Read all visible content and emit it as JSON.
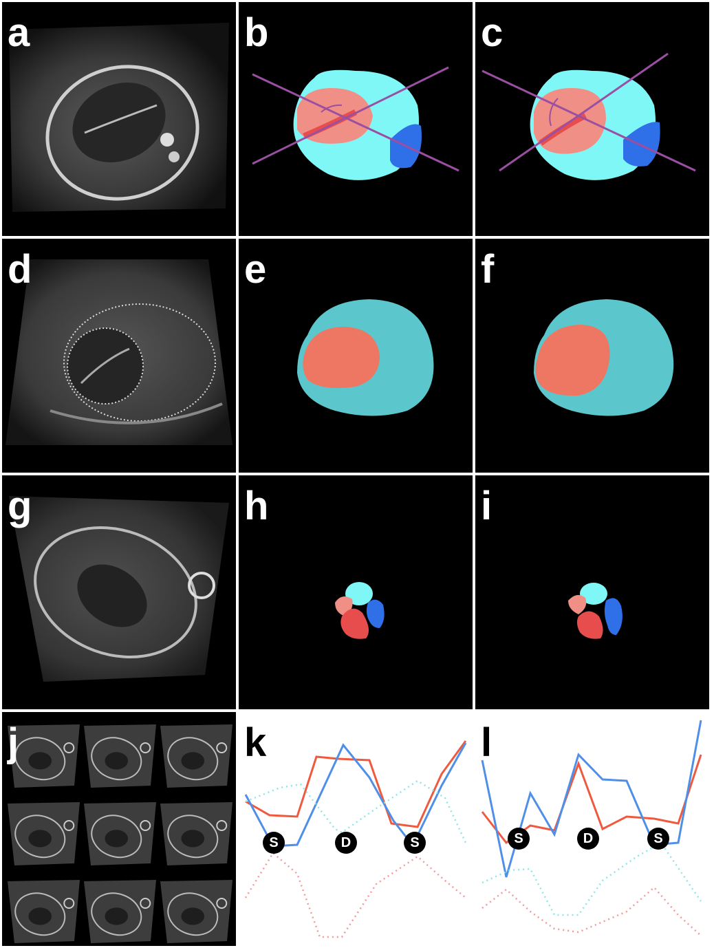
{
  "panel_labels": {
    "a": "a",
    "b": "b",
    "c": "c",
    "d": "d",
    "e": "e",
    "f": "f",
    "g": "g",
    "h": "h",
    "i": "i",
    "j": "j",
    "k": "k",
    "l": "l"
  },
  "cycle_markers": {
    "k": [
      "S",
      "D",
      "S"
    ],
    "l": [
      "S",
      "D",
      "S"
    ]
  },
  "colors": {
    "outer_region_light": "#7ff7f7",
    "outer_region_teal": "#5bc7cc",
    "inner_region_salmon": "#ee7764",
    "inner_region_pink": "#f08f85",
    "seg_red": "#e84d4d",
    "seg_blue": "#2f6fe8",
    "axis_line_purple": "#9a4fa3",
    "plot_red": "#ef5a3f",
    "plot_blue": "#4f8fe8",
    "plot_cyan_dotted": "#8ee5e8",
    "plot_pink_dotted": "#f29a9a"
  }
}
